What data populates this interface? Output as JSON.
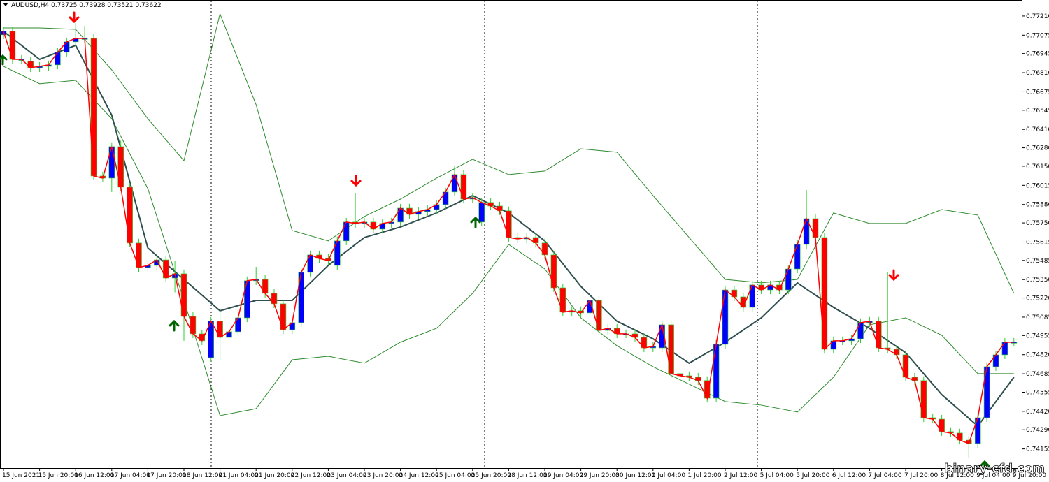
{
  "chart_data": {
    "type": "candlestick",
    "title": "AUDUSD,H4  0.73725 0.73928 0.73521 0.73622",
    "watermark": "binary-cfd.com",
    "categories": [
      "15 Jun 2021",
      null,
      null,
      null,
      "15 Jun 20:00",
      null,
      null,
      null,
      "16 Jun 12:00",
      null,
      null,
      null,
      "17 Jun 04:00",
      null,
      null,
      null,
      "17 Jun 20:00",
      null,
      null,
      null,
      "18 Jun 12:00",
      null,
      null,
      null,
      "21 Jun 04:00",
      null,
      null,
      null,
      "21 Jun 20:00",
      null,
      null,
      null,
      "22 Jun 12:00",
      null,
      null,
      null,
      "23 Jun 04:00",
      null,
      null,
      null,
      "23 Jun 20:00",
      null,
      null,
      null,
      "24 Jun 12:00",
      null,
      null,
      null,
      "25 Jun 04:00",
      null,
      null,
      null,
      "25 Jun 20:00",
      null,
      null,
      null,
      "28 Jun 12:00",
      null,
      null,
      null,
      "29 Jun 04:00",
      null,
      null,
      null,
      "29 Jun 20:00",
      null,
      null,
      null,
      "30 Jun 12:00",
      null,
      null,
      null,
      "1 Jul 04:00",
      null,
      null,
      null,
      "1 Jul 20:00",
      null,
      null,
      null,
      "2 Jul 12:00",
      null,
      null,
      null,
      "5 Jul 04:00",
      null,
      null,
      null,
      "5 Jul 20:00",
      null,
      null,
      null,
      "6 Jul 12:00",
      null,
      null,
      null,
      "7 Jul 04:00",
      null,
      null,
      null,
      "7 Jul 20:00",
      null,
      null,
      null,
      "8 Jul 12:00",
      null,
      null,
      null,
      "9 Jul 04:00",
      null,
      null,
      null,
      "9 Jul 20:00"
    ],
    "open": [
      0.77077,
      0.77102,
      0.76904,
      0.7689,
      0.76845,
      0.76855,
      0.76865,
      0.76954,
      0.77028,
      0.77052,
      0.77052,
      0.76081,
      0.76066,
      0.76288,
      0.76002,
      0.75608,
      0.75435,
      0.7545,
      0.75489,
      0.75361,
      0.75391,
      0.7509,
      0.74967,
      0.74799,
      0.75056,
      0.74942,
      0.74982,
      0.7508,
      0.75342,
      0.75351,
      0.75253,
      0.75179,
      0.74996,
      0.75046,
      0.75401,
      0.75524,
      0.75499,
      0.7545,
      0.75623,
      0.75756,
      0.75746,
      0.75756,
      0.75706,
      0.75746,
      0.75756,
      0.75854,
      0.7581,
      0.7583,
      0.75844,
      0.75879,
      0.75968,
      0.76091,
      0.75918,
      0.75756,
      0.75894,
      0.75869,
      0.75835,
      0.75647,
      0.75637,
      0.75647,
      0.75608,
      0.75524,
      0.75292,
      0.7512,
      0.7513,
      0.75115,
      0.75203,
      0.74991,
      0.75006,
      0.74967,
      0.74967,
      0.74942,
      0.74868,
      0.74868,
      0.75031,
      0.74686,
      0.74671,
      0.74661,
      0.74637,
      0.74513,
      0.74893,
      0.75277,
      0.75228,
      0.75154,
      0.75312,
      0.75277,
      0.75312,
      0.75277,
      0.75425,
      0.75598,
      0.7578,
      0.75647,
      0.74858,
      0.74918,
      0.74918,
      0.74932,
      0.75046,
      0.75056,
      0.74868,
      0.74858,
      0.74819,
      0.74661,
      0.74637,
      0.74375,
      0.74365,
      0.74277,
      0.74267,
      0.74217,
      0.74193,
      0.74375,
      0.74735,
      0.74819,
      0.74908
    ],
    "high": [
      0.77132,
      0.77132,
      0.76934,
      0.7692,
      0.76885,
      0.76895,
      0.76984,
      0.77058,
      0.7716,
      0.7714,
      0.77082,
      0.76111,
      0.76318,
      0.7633,
      0.76032,
      0.75638,
      0.7548,
      0.75519,
      0.75519,
      0.7548,
      0.75421,
      0.7512,
      0.74997,
      0.75086,
      0.7515,
      0.75012,
      0.7511,
      0.75372,
      0.7544,
      0.75381,
      0.75283,
      0.75209,
      0.75076,
      0.75431,
      0.75554,
      0.75554,
      0.75529,
      0.75653,
      0.75786,
      0.7596,
      0.75786,
      0.75786,
      0.75776,
      0.75786,
      0.75884,
      0.75884,
      0.7586,
      0.75874,
      0.75909,
      0.75998,
      0.7615,
      0.76121,
      0.75958,
      0.75924,
      0.75924,
      0.75899,
      0.75865,
      0.75677,
      0.75677,
      0.75677,
      0.75638,
      0.75554,
      0.75322,
      0.7516,
      0.7516,
      0.75233,
      0.75233,
      0.75036,
      0.75036,
      0.74997,
      0.74997,
      0.74972,
      0.74908,
      0.75061,
      0.75061,
      0.74716,
      0.74701,
      0.74691,
      0.74667,
      0.74923,
      0.75307,
      0.75307,
      0.75258,
      0.75342,
      0.75342,
      0.75342,
      0.75342,
      0.75455,
      0.75628,
      0.75982,
      0.7581,
      0.75677,
      0.74948,
      0.74948,
      0.74962,
      0.75076,
      0.75086,
      0.75086,
      0.75401,
      0.74888,
      0.74849,
      0.74691,
      0.74667,
      0.74405,
      0.74395,
      0.74307,
      0.74297,
      0.74247,
      0.74405,
      0.74765,
      0.74849,
      0.74938,
      0.74938
    ],
    "low": [
      0.77047,
      0.76874,
      0.76874,
      0.76815,
      0.76815,
      0.76825,
      0.76835,
      0.76924,
      0.76998,
      0.77022,
      0.76051,
      0.76036,
      0.75968,
      0.75972,
      0.75578,
      0.75405,
      0.75405,
      0.7542,
      0.75331,
      0.7526,
      0.74918,
      0.74937,
      0.74888,
      0.74769,
      0.7478,
      0.74912,
      0.74952,
      0.7505,
      0.75312,
      0.75223,
      0.75149,
      0.74966,
      0.74966,
      0.75016,
      0.75371,
      0.75469,
      0.75454,
      0.7542,
      0.75593,
      0.75716,
      0.75716,
      0.75676,
      0.75676,
      0.75716,
      0.75726,
      0.7578,
      0.7578,
      0.758,
      0.75814,
      0.75849,
      0.75938,
      0.75888,
      0.75888,
      0.75726,
      0.75839,
      0.75805,
      0.75617,
      0.75607,
      0.75607,
      0.75578,
      0.75494,
      0.75262,
      0.7509,
      0.7509,
      0.75085,
      0.75085,
      0.74961,
      0.74961,
      0.74937,
      0.74937,
      0.74912,
      0.74838,
      0.74838,
      0.74838,
      0.74656,
      0.74641,
      0.74631,
      0.74607,
      0.74483,
      0.74483,
      0.74863,
      0.75198,
      0.75124,
      0.75124,
      0.75247,
      0.75247,
      0.75247,
      0.75247,
      0.75395,
      0.75568,
      0.75617,
      0.74828,
      0.74828,
      0.74888,
      0.74888,
      0.74902,
      0.75016,
      0.74838,
      0.74828,
      0.74789,
      0.74631,
      0.74607,
      0.74345,
      0.74335,
      0.74247,
      0.74237,
      0.74187,
      0.74094,
      0.74163,
      0.74345,
      0.74705,
      0.74789,
      0.74878
    ],
    "close": [
      0.77102,
      0.76904,
      0.76904,
      0.76845,
      0.76855,
      0.76865,
      0.76954,
      0.77028,
      0.77052,
      0.77052,
      0.76081,
      0.76066,
      0.76288,
      0.76002,
      0.75608,
      0.75435,
      0.7545,
      0.75489,
      0.75361,
      0.75391,
      0.7509,
      0.74967,
      0.74918,
      0.75056,
      0.74942,
      0.74982,
      0.7508,
      0.75342,
      0.75351,
      0.75253,
      0.75179,
      0.74996,
      0.75046,
      0.75401,
      0.75524,
      0.75499,
      0.75484,
      0.75623,
      0.75756,
      0.75746,
      0.75756,
      0.75706,
      0.75746,
      0.75756,
      0.75854,
      0.7581,
      0.7583,
      0.75844,
      0.75879,
      0.75968,
      0.76091,
      0.75918,
      0.75928,
      0.75894,
      0.75869,
      0.75835,
      0.75647,
      0.75637,
      0.75647,
      0.75608,
      0.75524,
      0.75292,
      0.7512,
      0.7513,
      0.75115,
      0.75203,
      0.74991,
      0.75006,
      0.74967,
      0.74967,
      0.74942,
      0.74868,
      0.74878,
      0.75031,
      0.74686,
      0.74671,
      0.74661,
      0.74637,
      0.74513,
      0.74893,
      0.75277,
      0.75228,
      0.75154,
      0.75312,
      0.75277,
      0.75312,
      0.75277,
      0.75425,
      0.75598,
      0.7578,
      0.75647,
      0.74858,
      0.74918,
      0.74918,
      0.74932,
      0.75046,
      0.75056,
      0.74868,
      0.74858,
      0.74819,
      0.74661,
      0.74637,
      0.74375,
      0.74365,
      0.74277,
      0.74267,
      0.74217,
      0.74193,
      0.74375,
      0.74735,
      0.74819,
      0.74908,
      0.74908
    ],
    "up_color": "#0000ff",
    "down_color": "#ff0000",
    "wick_color": "#32cd32",
    "close_line_color": "#ff0000",
    "lines": [
      {
        "color": "#2e8b2e",
        "values": [
          0.77126,
          0.77126,
          0.77116,
          0.7683,
          0.76485,
          0.76189,
          0.77225,
          0.76584,
          0.75696,
          0.75623,
          0.75795,
          0.75918,
          0.76066,
          0.76199,
          0.76091,
          0.76116,
          0.76273,
          0.76249,
          0.75943,
          0.75647,
          0.75351,
          0.75327,
          0.75351,
          0.7582,
          0.75746,
          0.75746,
          0.75844,
          0.75805,
          0.75253
        ]
      },
      {
        "color": "#2e8b2e",
        "values": [
          0.76855,
          0.76732,
          0.76756,
          0.76485,
          0.75992,
          0.75203,
          0.7439,
          0.74439,
          0.74784,
          0.74809,
          0.7476,
          0.74908,
          0.75006,
          0.75253,
          0.75598,
          0.75425,
          0.7508,
          0.74883,
          0.74735,
          0.74612,
          0.74489,
          0.74464,
          0.74415,
          0.74661,
          0.75031,
          0.7508,
          0.74957,
          0.74686,
          0.74686
        ]
      },
      {
        "color": "#2f4f4f",
        "values": [
          0.77102,
          0.76904,
          0.77003,
          0.7651,
          0.75573,
          0.75351,
          0.7513,
          0.75203,
          0.75203,
          0.7545,
          0.75647,
          0.75721,
          0.7582,
          0.75943,
          0.7582,
          0.75623,
          0.75302,
          0.75056,
          0.74932,
          0.7476,
          0.74908,
          0.7508,
          0.75327,
          0.75154,
          0.75006,
          0.74834,
          0.74538,
          0.74316,
          0.74661
        ]
      }
    ],
    "ylim": [
      0.7402,
      0.77323
    ],
    "yticks": [
      {
        "value": 0.7721,
        "label": "0.77210"
      },
      {
        "value": 0.77075,
        "label": "0.77075"
      },
      {
        "value": 0.76945,
        "label": "0.76945"
      },
      {
        "value": 0.7681,
        "label": "0.76810"
      },
      {
        "value": 0.76675,
        "label": "0.76675"
      },
      {
        "value": 0.76545,
        "label": "0.76545"
      },
      {
        "value": 0.7641,
        "label": "0.76410"
      },
      {
        "value": 0.7628,
        "label": "0.76280"
      },
      {
        "value": 0.7615,
        "label": "0.76150"
      },
      {
        "value": 0.76015,
        "label": "0.76015"
      },
      {
        "value": 0.7588,
        "label": "0.75880"
      },
      {
        "value": 0.7575,
        "label": "0.75750"
      },
      {
        "value": 0.75615,
        "label": "0.75615"
      },
      {
        "value": 0.75485,
        "label": "0.75485"
      },
      {
        "value": 0.7535,
        "label": "0.75350"
      },
      {
        "value": 0.7522,
        "label": "0.75220"
      },
      {
        "value": 0.75085,
        "label": "0.75085"
      },
      {
        "value": 0.74955,
        "label": "0.74955"
      },
      {
        "value": 0.7482,
        "label": "0.74820"
      },
      {
        "value": 0.74685,
        "label": "0.74685"
      },
      {
        "value": 0.74555,
        "label": "0.74555"
      },
      {
        "value": 0.7442,
        "label": "0.74420"
      },
      {
        "value": 0.7429,
        "label": "0.74290"
      },
      {
        "value": 0.74155,
        "label": "0.74155"
      }
    ]
  }
}
